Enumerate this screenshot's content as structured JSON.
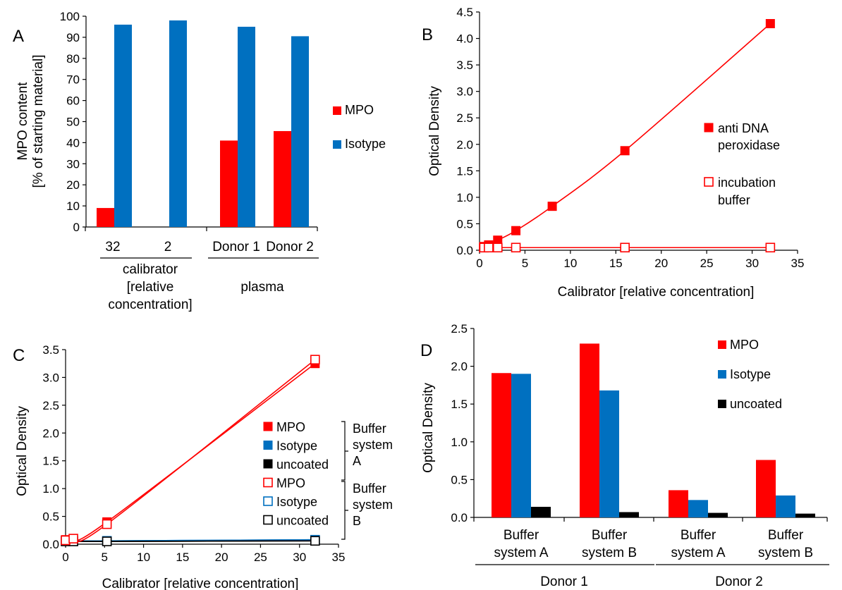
{
  "colors": {
    "mpo": "#ff0000",
    "isotype": "#0070c0",
    "uncoated": "#000000",
    "axis": "#000000"
  },
  "panels": {
    "a": "A",
    "b": "B",
    "c": "C",
    "d": "D"
  },
  "panel_a": {
    "ylabel_line1": "MPO content",
    "ylabel_line2": "[% of starting material]",
    "calibrator_line1": "calibrator",
    "calibrator_line2": "[relative",
    "calibrator_line3": "concentration]",
    "plasma_label": "plasma"
  },
  "panel_c": {
    "buffer_a_line1": "Buffer",
    "buffer_a_line2": "system",
    "buffer_a_line3": "A",
    "buffer_b_line1": "Buffer",
    "buffer_b_line2": "system",
    "buffer_b_line3": "B"
  },
  "panel_d": {
    "donor1_label": "Donor 1",
    "donor2_label": "Donor 2"
  },
  "chart_data": [
    {
      "id": "A",
      "type": "bar",
      "categories": [
        "32",
        "2",
        "Donor 1",
        "Donor 2"
      ],
      "series": [
        {
          "name": "MPO",
          "values": [
            9,
            null,
            41,
            45.5
          ]
        },
        {
          "name": "Isotype",
          "values": [
            96,
            98,
            95,
            90.5
          ]
        }
      ],
      "ylabel": "MPO content [% of starting material]",
      "ylim": [
        0,
        100
      ],
      "yticks": [
        "0",
        "10",
        "20",
        "30",
        "40",
        "50",
        "60",
        "70",
        "80",
        "90",
        "100"
      ],
      "legend_position": "right"
    },
    {
      "id": "B",
      "type": "line",
      "xlabel": "Calibrator [relative concentration]",
      "ylabel": "Optical Density",
      "xlim": [
        0,
        35
      ],
      "ylim": [
        0,
        4.5
      ],
      "xticks": [
        "0",
        "5",
        "10",
        "15",
        "20",
        "25",
        "30",
        "35"
      ],
      "yticks": [
        "0.0",
        "0.5",
        "1.0",
        "1.5",
        "2.0",
        "2.5",
        "3.0",
        "3.5",
        "4.0",
        "4.5"
      ],
      "series": [
        {
          "name": "anti DNA peroxidase",
          "marker": "filled-square",
          "x": [
            0,
            0.5,
            1,
            2,
            4,
            8,
            16,
            32
          ],
          "y": [
            0.06,
            0.07,
            0.1,
            0.19,
            0.37,
            0.83,
            1.88,
            4.28
          ]
        },
        {
          "name": "incubation buffer",
          "marker": "open-square",
          "x": [
            0,
            0.5,
            1,
            2,
            4,
            16,
            32
          ],
          "y": [
            0.05,
            0.05,
            0.05,
            0.05,
            0.05,
            0.05,
            0.05
          ]
        }
      ],
      "legend_position": "right"
    },
    {
      "id": "C",
      "type": "line",
      "xlabel": "Calibrator [relative concentration]",
      "ylabel": "Optical Density",
      "xlim": [
        0,
        35
      ],
      "ylim": [
        0,
        3.5
      ],
      "xticks": [
        "0",
        "5",
        "10",
        "15",
        "20",
        "25",
        "30",
        "35"
      ],
      "yticks": [
        "0.0",
        "0.5",
        "1.0",
        "1.5",
        "2.0",
        "2.5",
        "3.0",
        "3.5"
      ],
      "series": [
        {
          "name": "MPO",
          "group": "Buffer system A",
          "marker": "filled-square",
          "x": [
            0,
            1,
            5.3,
            32
          ],
          "y": [
            0.08,
            0.1,
            0.4,
            3.25
          ]
        },
        {
          "name": "Isotype",
          "group": "Buffer system A",
          "marker": "filled-square",
          "x": [
            0,
            1,
            5.3,
            32
          ],
          "y": [
            0.06,
            0.06,
            0.06,
            0.08
          ]
        },
        {
          "name": "uncoated",
          "group": "Buffer system A",
          "marker": "filled-square",
          "x": [
            0,
            1,
            5.3,
            32
          ],
          "y": [
            0.05,
            0.05,
            0.05,
            0.06
          ]
        },
        {
          "name": "MPO",
          "group": "Buffer system B",
          "marker": "open-square",
          "x": [
            0,
            1,
            5.3,
            32
          ],
          "y": [
            0.07,
            0.1,
            0.36,
            3.32
          ]
        },
        {
          "name": "Isotype",
          "group": "Buffer system B",
          "marker": "open-square",
          "x": [
            0,
            1,
            5.3,
            32
          ],
          "y": [
            0.06,
            0.06,
            0.06,
            0.08
          ]
        },
        {
          "name": "uncoated",
          "group": "Buffer system B",
          "marker": "open-square",
          "x": [
            0,
            1,
            5.3,
            32
          ],
          "y": [
            0.05,
            0.05,
            0.05,
            0.06
          ]
        }
      ],
      "legend_position": "right"
    },
    {
      "id": "D",
      "type": "bar",
      "categories": [
        "Buffer system A",
        "Buffer system B",
        "Buffer system A",
        "Buffer system B"
      ],
      "category_lines": [
        [
          "Buffer",
          "system A"
        ],
        [
          "Buffer",
          "system B"
        ],
        [
          "Buffer",
          "system A"
        ],
        [
          "Buffer",
          "system B"
        ]
      ],
      "groups": [
        "Donor 1",
        "Donor 2"
      ],
      "series": [
        {
          "name": "MPO",
          "values": [
            1.91,
            2.3,
            0.36,
            0.76
          ]
        },
        {
          "name": "Isotype",
          "values": [
            1.9,
            1.68,
            0.23,
            0.29
          ]
        },
        {
          "name": "uncoated",
          "values": [
            0.14,
            0.07,
            0.06,
            0.05
          ]
        }
      ],
      "ylabel": "Optical Density",
      "ylim": [
        0,
        2.5
      ],
      "yticks": [
        "0.0",
        "0.5",
        "1.0",
        "1.5",
        "2.0",
        "2.5"
      ],
      "legend_position": "top-right"
    }
  ]
}
